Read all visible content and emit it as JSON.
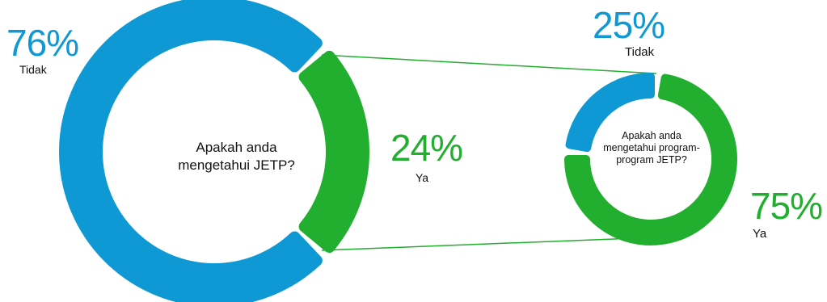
{
  "colors": {
    "blue": "#0f99d4",
    "green": "#22ae2f",
    "connector": "#22ae2f"
  },
  "chart_data": [
    {
      "type": "pie",
      "donut": true,
      "question": "Apakah anda mengetahui JETP?",
      "categories": [
        "Tidak",
        "Ya"
      ],
      "values": [
        76,
        24
      ],
      "value_labels": [
        "76%",
        "24%"
      ]
    },
    {
      "type": "pie",
      "donut": true,
      "question": "Apakah anda mengetahui program-program JETP?",
      "categories": [
        "Tidak",
        "Ya"
      ],
      "values": [
        25,
        75
      ],
      "value_labels": [
        "25%",
        "75%"
      ]
    }
  ]
}
